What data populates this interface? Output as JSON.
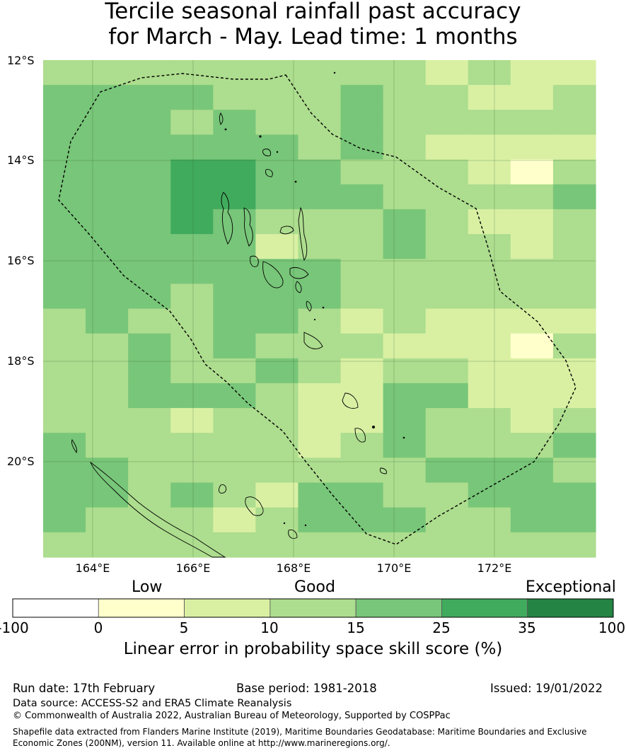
{
  "title": {
    "line1": "Tercile seasonal rainfall past accuracy",
    "line2": "for March - May. Lead time: 1 months"
  },
  "map": {
    "lat_labels": [
      "12°S",
      "14°S",
      "16°S",
      "18°S",
      "20°S"
    ],
    "lon_labels": [
      "164°E",
      "166°E",
      "168°E",
      "170°E",
      "172°E"
    ],
    "extent": {
      "lon_min": 163.0,
      "lon_max": 174.0,
      "lat_min": -21.9,
      "lat_max": -12.0
    },
    "colors": [
      "#ffffff",
      "#ffffcc",
      "#d9f0a3",
      "#addd8e",
      "#78c679",
      "#41ab5d",
      "#238443"
    ],
    "grid_classes": [
      [
        3,
        3,
        3,
        3,
        3,
        3,
        3,
        3,
        3,
        2,
        3,
        2,
        2
      ],
      [
        4,
        4,
        4,
        4,
        3,
        3,
        3,
        4,
        3,
        3,
        2,
        2,
        3
      ],
      [
        4,
        4,
        4,
        3,
        4,
        3,
        3,
        4,
        3,
        3,
        3,
        3,
        3
      ],
      [
        4,
        4,
        4,
        4,
        4,
        4,
        3,
        4,
        3,
        2,
        2,
        2,
        2
      ],
      [
        4,
        4,
        4,
        5,
        5,
        4,
        4,
        3,
        3,
        3,
        2,
        1,
        3
      ],
      [
        4,
        4,
        4,
        5,
        5,
        4,
        4,
        4,
        3,
        3,
        3,
        3,
        4
      ],
      [
        4,
        4,
        4,
        5,
        4,
        3,
        3,
        3,
        4,
        3,
        2,
        2,
        3
      ],
      [
        4,
        4,
        4,
        4,
        4,
        2,
        3,
        3,
        4,
        3,
        3,
        2,
        3
      ],
      [
        4,
        4,
        4,
        4,
        4,
        4,
        4,
        3,
        3,
        3,
        3,
        3,
        3
      ],
      [
        4,
        4,
        4,
        3,
        4,
        4,
        4,
        3,
        3,
        3,
        3,
        3,
        3
      ],
      [
        3,
        4,
        3,
        3,
        4,
        4,
        3,
        2,
        3,
        2,
        2,
        2,
        2
      ],
      [
        3,
        3,
        4,
        3,
        4,
        3,
        3,
        3,
        2,
        2,
        2,
        1,
        3
      ],
      [
        3,
        3,
        4,
        3,
        3,
        4,
        3,
        2,
        3,
        3,
        2,
        2,
        2
      ],
      [
        3,
        3,
        4,
        4,
        4,
        3,
        2,
        2,
        4,
        4,
        2,
        2,
        2
      ],
      [
        3,
        3,
        3,
        2,
        3,
        3,
        2,
        2,
        4,
        3,
        3,
        2,
        3
      ],
      [
        4,
        3,
        3,
        3,
        3,
        3,
        2,
        3,
        4,
        3,
        3,
        3,
        4
      ],
      [
        4,
        4,
        3,
        3,
        3,
        3,
        3,
        3,
        3,
        4,
        4,
        4,
        3
      ],
      [
        4,
        4,
        3,
        4,
        3,
        2,
        4,
        4,
        3,
        3,
        4,
        4,
        4
      ],
      [
        4,
        3,
        3,
        3,
        2,
        3,
        4,
        4,
        4,
        3,
        3,
        4,
        4
      ],
      [
        3,
        3,
        3,
        3,
        3,
        3,
        3,
        3,
        3,
        3,
        3,
        3,
        3
      ]
    ]
  },
  "colorbar": {
    "category_labels": [
      "Low",
      "Good",
      "Exceptional"
    ],
    "ticks": [
      "-100",
      "0",
      "5",
      "10",
      "15",
      "25",
      "35",
      "100"
    ],
    "label": "Linear error in probability space skill score (%)"
  },
  "footer": {
    "run_date": "Run date: 17th February",
    "base_period": "Base period: 1981-2018",
    "issued": "Issued: 19/01/2022",
    "data_source": "Data source: ACCESS-S2 and ERA5 Climate Reanalysis",
    "copyright": "© Commonwealth of Australia 2022, Australian Bureau of Meteorology, Supported by COSPPac",
    "shapefile_line1": "Shapefile data extracted from Flanders Marine Institute (2019), Maritime Boundaries Geodatabase: Maritime Boundaries and Exclusive",
    "shapefile_line2": "Economic Zones (200NM), version 11. Available online at http://www.marineregions.org/."
  }
}
